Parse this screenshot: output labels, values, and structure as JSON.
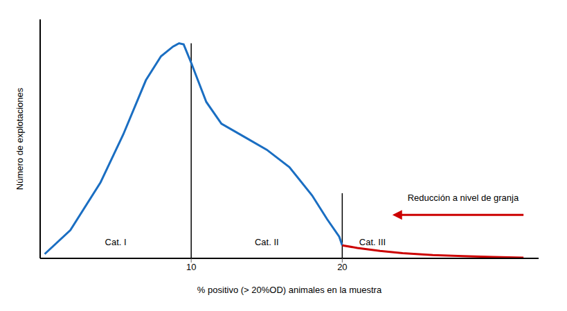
{
  "chart_data": {
    "type": "line",
    "xlabel": "% positivo (> 20%OD) animales en la muestra",
    "ylabel": "Número de explotaciones",
    "xlim": [
      0,
      33
    ],
    "ylim": [
      0,
      1.1
    ],
    "xticks": [
      10,
      20
    ],
    "tick_labels": "x",
    "grid": false,
    "series": [
      {
        "color": "#1a6ec2",
        "x": [
          0.3,
          2,
          4,
          5.5,
          7.0,
          8.0,
          8.8,
          9.2,
          9.5,
          10.0,
          11.0,
          12.0,
          13.5,
          15.0,
          16.5,
          18.0,
          19.0,
          19.8,
          20.0
        ],
        "values": [
          0.02,
          0.13,
          0.35,
          0.57,
          0.82,
          0.93,
          0.975,
          0.99,
          0.985,
          0.9,
          0.72,
          0.62,
          0.56,
          0.5,
          0.42,
          0.29,
          0.18,
          0.1,
          0.06
        ]
      },
      {
        "color": "#cc0000",
        "x": [
          20.0,
          21.0,
          22.5,
          24.0,
          26.0,
          28.0,
          30.0,
          32.0
        ],
        "values": [
          0.06,
          0.048,
          0.034,
          0.024,
          0.015,
          0.01,
          0.006,
          0.003
        ]
      }
    ],
    "vlines": [
      {
        "x": 10,
        "top": 0.99
      },
      {
        "x": 20,
        "top": 0.3
      }
    ],
    "arrows": [
      {
        "x_start": 32.0,
        "x_end": 23.5,
        "y": 0.2,
        "color": "#cc0000"
      }
    ],
    "annotations": [
      {
        "text": "Cat. I",
        "x": 5.0,
        "y": 0.075
      },
      {
        "text": "Cat. II",
        "x": 15.0,
        "y": 0.075
      },
      {
        "text": "Cat. III",
        "x": 22.0,
        "y": 0.075
      },
      {
        "text": "Reducción a nivel de granja",
        "x": 28.0,
        "y": 0.28
      }
    ]
  }
}
